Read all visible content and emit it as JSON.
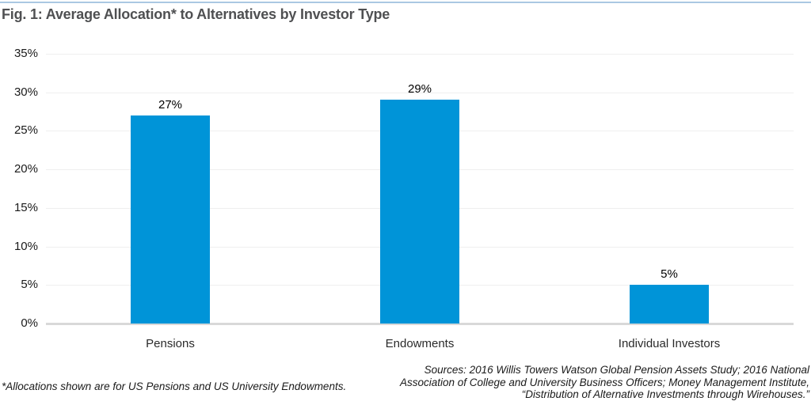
{
  "page": {
    "title": "Fig. 1: Average Allocation* to Alternatives by Investor Type"
  },
  "chart_data": {
    "type": "bar",
    "title": "Fig. 1: Average Allocation* to Alternatives by Investor Type",
    "categories": [
      "Pensions",
      "Endowments",
      "Individual Investors"
    ],
    "values": [
      27,
      29,
      5
    ],
    "value_labels": [
      "27%",
      "29%",
      "5%"
    ],
    "ylim": [
      0,
      35
    ],
    "ytick_step": 5,
    "ytick_labels": [
      "0%",
      "5%",
      "10%",
      "15%",
      "20%",
      "25%",
      "30%",
      "35%"
    ],
    "grid": true,
    "legend": "none",
    "xlabel": "",
    "ylabel": "",
    "bar_color": "#0094d8"
  },
  "footnotes": {
    "left_note": "*Allocations shown are for US Pensions and US University Endowments.",
    "sources_lines": [
      "Sources: 2016 Willis Towers Watson Global Pension Assets Study; 2016 National",
      "Association of College and University Business Officers; Money Management Institute,",
      "“Distribution of Alternative Investments through Wirehouses.”"
    ]
  },
  "colors": {
    "accent_bar": "#0094d8",
    "top_rule": "#aac8e2",
    "gridline": "#efefef",
    "baseline": "#d9d9d9",
    "title_text": "#4f5052"
  }
}
